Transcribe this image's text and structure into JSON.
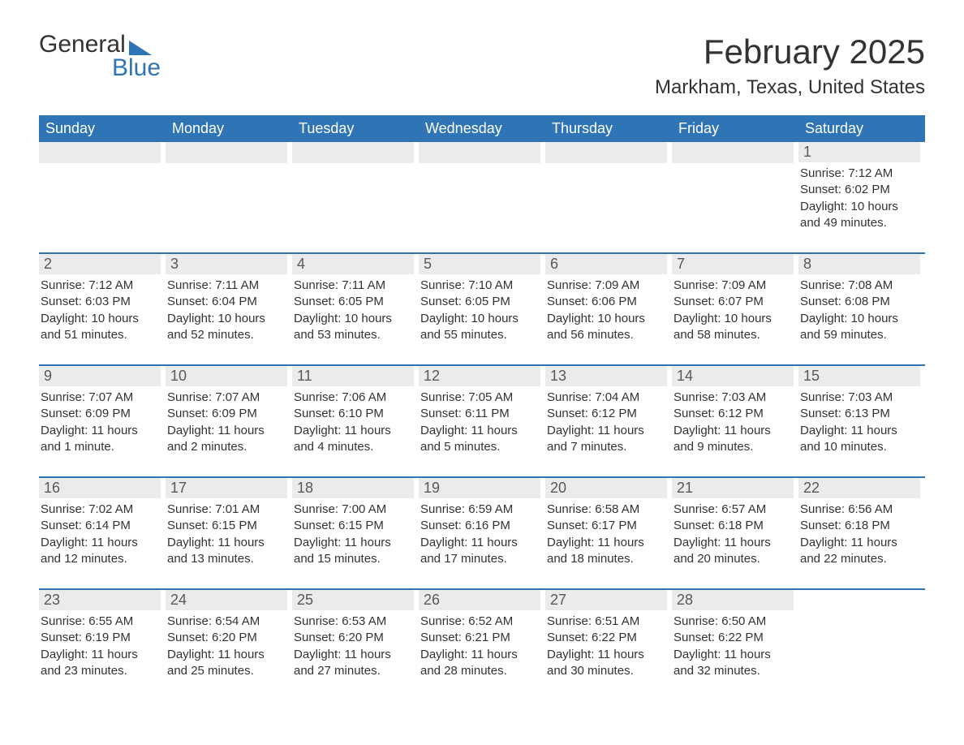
{
  "logo": {
    "word1": "General",
    "word2": "Blue"
  },
  "title": "February 2025",
  "location": "Markham, Texas, United States",
  "colors": {
    "brand": "#2f74b5",
    "header_text": "#ffffff",
    "daynum_bg": "#ebebeb",
    "daynum_text": "#595959",
    "body_text": "#333333",
    "page_bg": "#ffffff"
  },
  "days_of_week": [
    "Sunday",
    "Monday",
    "Tuesday",
    "Wednesday",
    "Thursday",
    "Friday",
    "Saturday"
  ],
  "weeks": [
    [
      {
        "blank": true
      },
      {
        "blank": true
      },
      {
        "blank": true
      },
      {
        "blank": true
      },
      {
        "blank": true
      },
      {
        "blank": true
      },
      {
        "num": "1",
        "sunrise": "Sunrise: 7:12 AM",
        "sunset": "Sunset: 6:02 PM",
        "day1": "Daylight: 10 hours",
        "day2": "and 49 minutes."
      }
    ],
    [
      {
        "num": "2",
        "sunrise": "Sunrise: 7:12 AM",
        "sunset": "Sunset: 6:03 PM",
        "day1": "Daylight: 10 hours",
        "day2": "and 51 minutes."
      },
      {
        "num": "3",
        "sunrise": "Sunrise: 7:11 AM",
        "sunset": "Sunset: 6:04 PM",
        "day1": "Daylight: 10 hours",
        "day2": "and 52 minutes."
      },
      {
        "num": "4",
        "sunrise": "Sunrise: 7:11 AM",
        "sunset": "Sunset: 6:05 PM",
        "day1": "Daylight: 10 hours",
        "day2": "and 53 minutes."
      },
      {
        "num": "5",
        "sunrise": "Sunrise: 7:10 AM",
        "sunset": "Sunset: 6:05 PM",
        "day1": "Daylight: 10 hours",
        "day2": "and 55 minutes."
      },
      {
        "num": "6",
        "sunrise": "Sunrise: 7:09 AM",
        "sunset": "Sunset: 6:06 PM",
        "day1": "Daylight: 10 hours",
        "day2": "and 56 minutes."
      },
      {
        "num": "7",
        "sunrise": "Sunrise: 7:09 AM",
        "sunset": "Sunset: 6:07 PM",
        "day1": "Daylight: 10 hours",
        "day2": "and 58 minutes."
      },
      {
        "num": "8",
        "sunrise": "Sunrise: 7:08 AM",
        "sunset": "Sunset: 6:08 PM",
        "day1": "Daylight: 10 hours",
        "day2": "and 59 minutes."
      }
    ],
    [
      {
        "num": "9",
        "sunrise": "Sunrise: 7:07 AM",
        "sunset": "Sunset: 6:09 PM",
        "day1": "Daylight: 11 hours",
        "day2": "and 1 minute."
      },
      {
        "num": "10",
        "sunrise": "Sunrise: 7:07 AM",
        "sunset": "Sunset: 6:09 PM",
        "day1": "Daylight: 11 hours",
        "day2": "and 2 minutes."
      },
      {
        "num": "11",
        "sunrise": "Sunrise: 7:06 AM",
        "sunset": "Sunset: 6:10 PM",
        "day1": "Daylight: 11 hours",
        "day2": "and 4 minutes."
      },
      {
        "num": "12",
        "sunrise": "Sunrise: 7:05 AM",
        "sunset": "Sunset: 6:11 PM",
        "day1": "Daylight: 11 hours",
        "day2": "and 5 minutes."
      },
      {
        "num": "13",
        "sunrise": "Sunrise: 7:04 AM",
        "sunset": "Sunset: 6:12 PM",
        "day1": "Daylight: 11 hours",
        "day2": "and 7 minutes."
      },
      {
        "num": "14",
        "sunrise": "Sunrise: 7:03 AM",
        "sunset": "Sunset: 6:12 PM",
        "day1": "Daylight: 11 hours",
        "day2": "and 9 minutes."
      },
      {
        "num": "15",
        "sunrise": "Sunrise: 7:03 AM",
        "sunset": "Sunset: 6:13 PM",
        "day1": "Daylight: 11 hours",
        "day2": "and 10 minutes."
      }
    ],
    [
      {
        "num": "16",
        "sunrise": "Sunrise: 7:02 AM",
        "sunset": "Sunset: 6:14 PM",
        "day1": "Daylight: 11 hours",
        "day2": "and 12 minutes."
      },
      {
        "num": "17",
        "sunrise": "Sunrise: 7:01 AM",
        "sunset": "Sunset: 6:15 PM",
        "day1": "Daylight: 11 hours",
        "day2": "and 13 minutes."
      },
      {
        "num": "18",
        "sunrise": "Sunrise: 7:00 AM",
        "sunset": "Sunset: 6:15 PM",
        "day1": "Daylight: 11 hours",
        "day2": "and 15 minutes."
      },
      {
        "num": "19",
        "sunrise": "Sunrise: 6:59 AM",
        "sunset": "Sunset: 6:16 PM",
        "day1": "Daylight: 11 hours",
        "day2": "and 17 minutes."
      },
      {
        "num": "20",
        "sunrise": "Sunrise: 6:58 AM",
        "sunset": "Sunset: 6:17 PM",
        "day1": "Daylight: 11 hours",
        "day2": "and 18 minutes."
      },
      {
        "num": "21",
        "sunrise": "Sunrise: 6:57 AM",
        "sunset": "Sunset: 6:18 PM",
        "day1": "Daylight: 11 hours",
        "day2": "and 20 minutes."
      },
      {
        "num": "22",
        "sunrise": "Sunrise: 6:56 AM",
        "sunset": "Sunset: 6:18 PM",
        "day1": "Daylight: 11 hours",
        "day2": "and 22 minutes."
      }
    ],
    [
      {
        "num": "23",
        "sunrise": "Sunrise: 6:55 AM",
        "sunset": "Sunset: 6:19 PM",
        "day1": "Daylight: 11 hours",
        "day2": "and 23 minutes."
      },
      {
        "num": "24",
        "sunrise": "Sunrise: 6:54 AM",
        "sunset": "Sunset: 6:20 PM",
        "day1": "Daylight: 11 hours",
        "day2": "and 25 minutes."
      },
      {
        "num": "25",
        "sunrise": "Sunrise: 6:53 AM",
        "sunset": "Sunset: 6:20 PM",
        "day1": "Daylight: 11 hours",
        "day2": "and 27 minutes."
      },
      {
        "num": "26",
        "sunrise": "Sunrise: 6:52 AM",
        "sunset": "Sunset: 6:21 PM",
        "day1": "Daylight: 11 hours",
        "day2": "and 28 minutes."
      },
      {
        "num": "27",
        "sunrise": "Sunrise: 6:51 AM",
        "sunset": "Sunset: 6:22 PM",
        "day1": "Daylight: 11 hours",
        "day2": "and 30 minutes."
      },
      {
        "num": "28",
        "sunrise": "Sunrise: 6:50 AM",
        "sunset": "Sunset: 6:22 PM",
        "day1": "Daylight: 11 hours",
        "day2": "and 32 minutes."
      },
      {
        "blank": true,
        "no_bar": true
      }
    ]
  ]
}
